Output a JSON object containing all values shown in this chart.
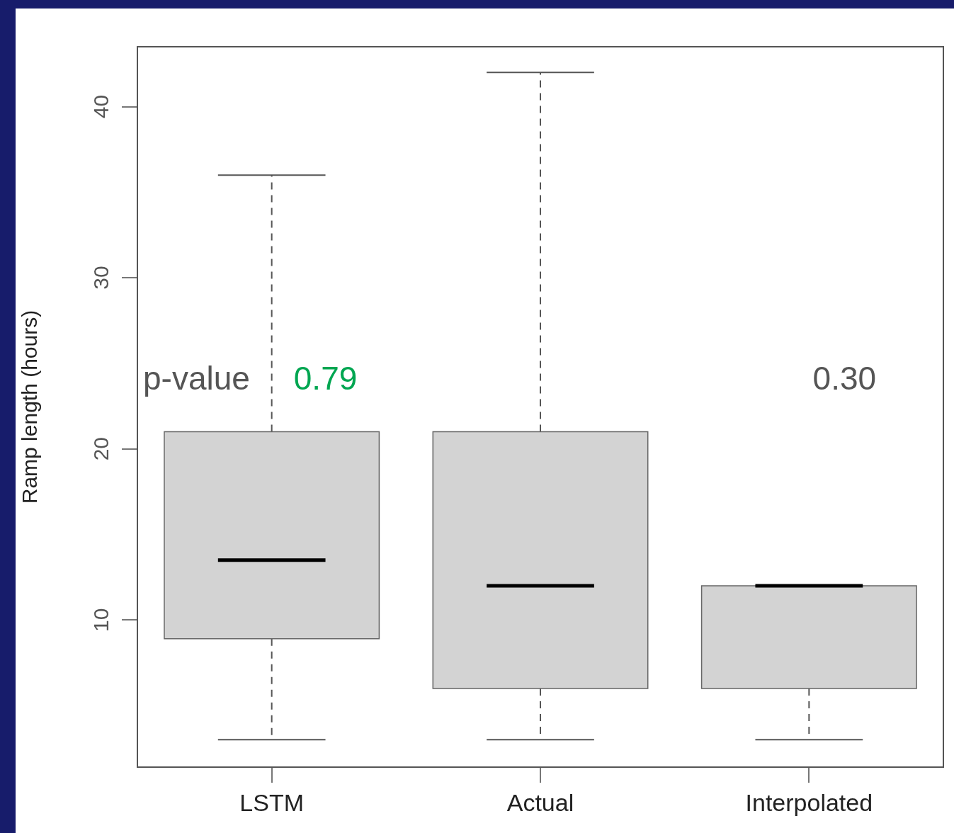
{
  "chart_data": {
    "type": "box",
    "ylabel": "Ramp length (hours)",
    "categories": [
      "LSTM",
      "Actual",
      "Interpolated"
    ],
    "ylim": [
      1.4,
      43.5
    ],
    "yticks": [
      10,
      20,
      30,
      40
    ],
    "grid": false,
    "legend": false,
    "series": [
      {
        "color": "#d3d3d3",
        "boxes": [
          {
            "low": 3,
            "q1": 8.9,
            "median": 13.5,
            "q3": 21,
            "high": 36
          },
          {
            "low": 3,
            "q1": 6,
            "median": 12,
            "q3": 21,
            "high": 42
          },
          {
            "low": 3,
            "q1": 6,
            "median": 12,
            "q3": 12,
            "high": 12
          }
        ]
      }
    ],
    "annotations": [
      "p-value",
      "0.79",
      "0.30"
    ]
  }
}
